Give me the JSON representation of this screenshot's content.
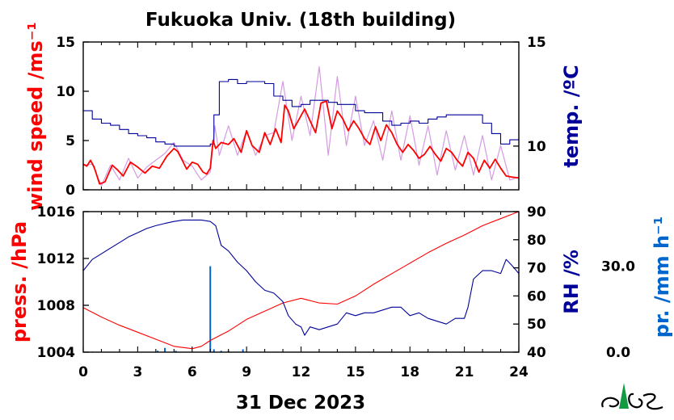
{
  "title": "Fukuoka Univ. (18th building)",
  "date_label": "31 Dec 2023",
  "colors": {
    "wind": "#ff0000",
    "wind_raw": "#cc88dd",
    "temp": "#000099",
    "press": "#ff0000",
    "rh": "#000099",
    "precip": "#0066cc"
  },
  "chart_data": [
    {
      "type": "line",
      "panel": "top",
      "xlim": [
        0,
        24
      ],
      "x_ticks": [
        0,
        3,
        6,
        9,
        12,
        15,
        18,
        21,
        24
      ],
      "y_left": {
        "label": "wind speed /ms⁻¹",
        "lim": [
          0,
          15
        ],
        "ticks": [
          0,
          5,
          10,
          15
        ]
      },
      "y_right": {
        "label": "temp. /ºC",
        "lim": [
          7.9,
          15
        ],
        "ticks": [
          10,
          15
        ]
      },
      "series": [
        {
          "axis": "left",
          "style": "raw",
          "x": [
            0,
            0.5,
            1,
            1.5,
            2,
            2.5,
            3,
            3.5,
            4,
            4.5,
            5,
            5.5,
            6,
            6.5,
            7,
            7.25,
            7.5,
            8,
            8.5,
            9,
            9.5,
            10,
            10.5,
            11,
            11.5,
            12,
            12.5,
            13,
            13.5,
            14,
            14.5,
            15,
            15.5,
            16,
            16.5,
            17,
            17.5,
            18,
            18.5,
            19,
            19.5,
            20,
            20.5,
            21,
            21.5,
            22,
            22.5,
            23,
            23.5,
            24
          ],
          "values": [
            2.5,
            2.6,
            0.4,
            2.5,
            1.0,
            3.2,
            1.2,
            2.3,
            3.0,
            3.7,
            4.8,
            3.0,
            2.4,
            1.0,
            1.8,
            6.5,
            3.5,
            6.5,
            3.5,
            6.0,
            3.5,
            5.5,
            5.8,
            11.0,
            5.0,
            9.5,
            5.5,
            12.5,
            3.5,
            11.5,
            4.5,
            9.5,
            4.5,
            7.0,
            3.0,
            8.0,
            3.0,
            7.5,
            2.5,
            6.5,
            1.5,
            6.0,
            2.0,
            5.5,
            1.5,
            5.5,
            1.0,
            4.5,
            1.0,
            1.3
          ]
        },
        {
          "axis": "left",
          "style": "smooth",
          "x": [
            0,
            0.2,
            0.4,
            0.6,
            0.9,
            1.2,
            1.6,
            1.9,
            2.2,
            2.6,
            3.0,
            3.4,
            3.8,
            4.2,
            4.6,
            5.0,
            5.2,
            5.4,
            5.7,
            6.0,
            6.3,
            6.6,
            6.8,
            7.0,
            7.15,
            7.3,
            7.6,
            8.0,
            8.3,
            8.7,
            9.0,
            9.3,
            9.7,
            10.0,
            10.3,
            10.6,
            10.9,
            11.1,
            11.3,
            11.6,
            11.9,
            12.2,
            12.5,
            12.8,
            13.1,
            13.4,
            13.7,
            14.0,
            14.3,
            14.6,
            14.9,
            15.2,
            15.5,
            15.8,
            16.1,
            16.4,
            16.7,
            17.0,
            17.3,
            17.6,
            17.9,
            18.2,
            18.5,
            18.8,
            19.1,
            19.4,
            19.7,
            20.0,
            20.3,
            20.6,
            20.9,
            21.2,
            21.5,
            21.8,
            22.1,
            22.4,
            22.7,
            23.0,
            23.3,
            23.6,
            24.0
          ],
          "values": [
            2.6,
            2.4,
            3.0,
            2.3,
            0.6,
            0.8,
            2.5,
            2.0,
            1.4,
            2.8,
            2.3,
            1.7,
            2.4,
            2.2,
            3.4,
            4.2,
            3.9,
            3.2,
            2.1,
            2.8,
            2.6,
            1.8,
            1.6,
            2.2,
            5.0,
            4.2,
            4.8,
            4.6,
            5.2,
            3.8,
            6.0,
            4.5,
            3.8,
            5.8,
            4.6,
            6.2,
            4.8,
            8.6,
            8.0,
            6.2,
            7.2,
            8.2,
            7.0,
            5.8,
            8.8,
            9.0,
            6.2,
            8.0,
            7.2,
            6.0,
            7.0,
            6.2,
            5.2,
            4.6,
            6.4,
            5.0,
            6.6,
            5.8,
            4.6,
            3.8,
            4.6,
            4.0,
            3.2,
            3.6,
            4.4,
            3.6,
            2.9,
            4.2,
            3.8,
            3.0,
            2.4,
            3.8,
            3.2,
            1.8,
            3.0,
            2.2,
            3.1,
            2.2,
            1.4,
            1.3,
            1.2
          ]
        },
        {
          "axis": "right",
          "style": "step",
          "x": [
            0,
            0.5,
            1,
            1.5,
            2,
            2.5,
            3,
            3.5,
            4,
            4.5,
            5,
            5.5,
            6,
            6.5,
            7.0,
            7.2,
            7.5,
            8,
            8.5,
            9,
            9.5,
            10,
            10.5,
            11,
            11.5,
            12,
            12.5,
            13,
            13.5,
            14,
            14.5,
            15,
            15.5,
            16,
            16.5,
            17,
            17.5,
            18,
            18.5,
            19,
            19.5,
            20,
            20.5,
            21,
            21.5,
            22,
            22.5,
            23,
            23.5,
            24
          ],
          "values": [
            11.7,
            11.3,
            11.1,
            11.0,
            10.8,
            10.6,
            10.5,
            10.4,
            10.2,
            10.1,
            10.0,
            10.0,
            10.0,
            10.0,
            10.1,
            11.5,
            13.1,
            13.2,
            13.0,
            13.1,
            13.1,
            13.0,
            12.4,
            12.2,
            11.9,
            12.0,
            12.2,
            12.2,
            12.1,
            12.0,
            12.0,
            11.7,
            11.6,
            11.6,
            11.2,
            11.0,
            11.1,
            11.2,
            11.1,
            11.3,
            11.4,
            11.5,
            11.5,
            11.5,
            11.5,
            11.1,
            10.6,
            10.1,
            10.3,
            10.4
          ]
        }
      ]
    },
    {
      "type": "line",
      "panel": "bottom",
      "xlim": [
        0,
        24
      ],
      "x_ticks": [
        0,
        3,
        6,
        9,
        12,
        15,
        18,
        21,
        24
      ],
      "xlabel": "31 Dec 2023",
      "y_left": {
        "label": "press. /hPa",
        "lim": [
          1004,
          1016
        ],
        "ticks": [
          1004,
          1008,
          1012,
          1016
        ]
      },
      "y_right": {
        "label": "RH /%",
        "lim": [
          40,
          90
        ],
        "ticks": [
          40,
          50,
          60,
          70,
          80,
          90
        ]
      },
      "y_far_right": {
        "label": "pr. /mm h⁻¹",
        "ticks": [
          "0.0",
          "30.0"
        ]
      },
      "series": [
        {
          "axis": "left",
          "x": [
            0,
            1,
            2,
            3,
            4,
            5,
            6,
            6.5,
            7,
            8,
            9,
            10,
            11,
            12,
            13,
            14,
            15,
            16,
            17,
            18,
            19,
            20,
            21,
            22,
            23,
            24
          ],
          "values": [
            1007.8,
            1007.0,
            1006.3,
            1005.7,
            1005.1,
            1004.5,
            1004.3,
            1004.5,
            1005.0,
            1005.8,
            1006.8,
            1007.5,
            1008.2,
            1008.6,
            1008.2,
            1008.1,
            1008.8,
            1009.8,
            1010.7,
            1011.6,
            1012.5,
            1013.3,
            1014.0,
            1014.8,
            1015.4,
            1016.0
          ]
        },
        {
          "axis": "right",
          "x": [
            0,
            0.5,
            1,
            1.5,
            2,
            2.5,
            3,
            3.5,
            4,
            4.5,
            5,
            5.5,
            6,
            6.5,
            7.0,
            7.1,
            7.3,
            7.6,
            8.0,
            8.5,
            9,
            9.5,
            10,
            10.5,
            11,
            11.3,
            11.7,
            12.0,
            12.2,
            12.5,
            13,
            13.5,
            14,
            14.5,
            15,
            15.5,
            16,
            16.5,
            17,
            17.5,
            18,
            18.5,
            19,
            19.5,
            20,
            20.5,
            21,
            21.2,
            21.5,
            22,
            22.5,
            23,
            23.3,
            23.6,
            24
          ],
          "values": [
            69,
            73,
            75,
            77,
            79,
            81,
            82.5,
            84,
            85,
            85.8,
            86.5,
            87,
            87,
            87,
            86.5,
            86,
            85,
            78,
            76,
            72,
            69,
            65,
            62,
            61,
            58,
            53,
            50,
            49,
            46,
            49,
            48,
            49,
            50,
            54,
            53,
            54,
            54,
            55,
            56,
            56,
            53,
            54,
            52,
            51,
            50,
            52,
            52,
            56,
            66,
            69,
            69,
            68,
            73,
            71,
            68
          ]
        },
        {
          "axis": "far_right",
          "style": "bars",
          "x": [
            0.5,
            4.1,
            4.5,
            5.1,
            7.0,
            7.2,
            7.6,
            8.0,
            8.8
          ],
          "values": [
            0.2,
            0.5,
            1.5,
            0.5,
            30.0,
            1.0,
            0.5,
            0.5,
            1.0
          ]
        }
      ]
    }
  ]
}
